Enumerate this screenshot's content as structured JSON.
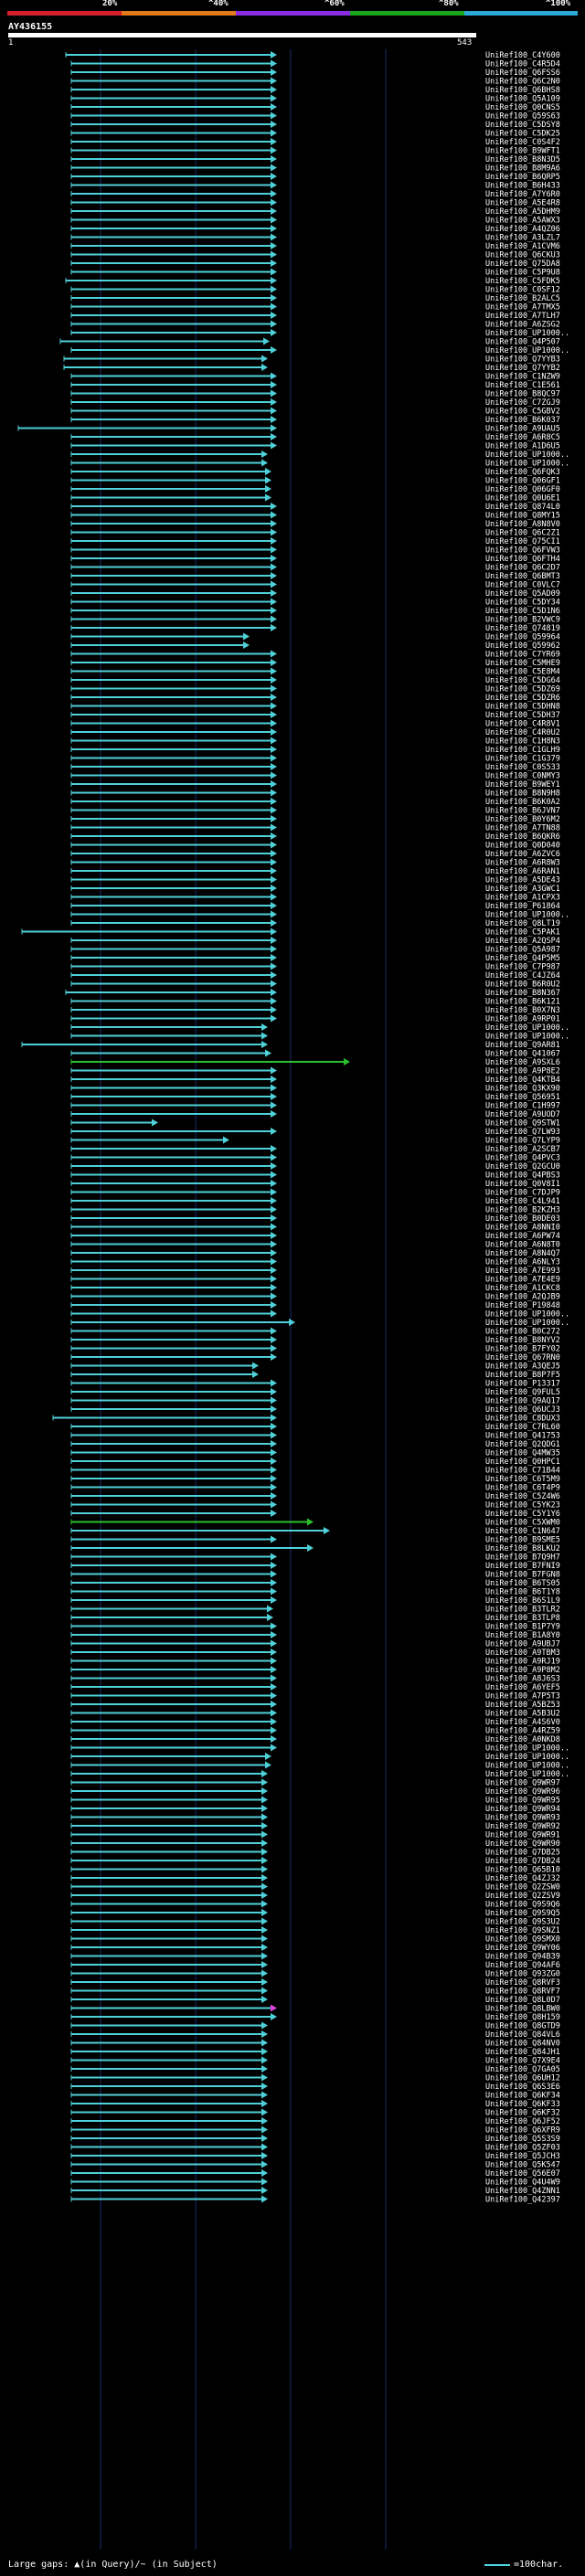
{
  "scale": {
    "labels": [
      "20%",
      "^40%",
      "^60%",
      "^80%",
      "^100%"
    ],
    "colors": [
      "#d61f2c",
      "#e07a1a",
      "#8a2be2",
      "#1aa51a",
      "#2aa8d6"
    ]
  },
  "query": {
    "id": "AY436155",
    "start": "1",
    "end": "543"
  },
  "hits": [
    {
      "id": "UniRef100_C4Y600",
      "s": 72,
      "e": 300
    },
    {
      "id": "UniRef100_C4R5D4",
      "s": 78,
      "e": 300
    },
    {
      "id": "UniRef100_Q6FSS6",
      "s": 78,
      "e": 300
    },
    {
      "id": "UniRef100_Q6C2N0",
      "s": 78,
      "e": 300
    },
    {
      "id": "UniRef100_Q6BHS8",
      "s": 78,
      "e": 300
    },
    {
      "id": "UniRef100_Q5A109",
      "s": 78,
      "e": 300
    },
    {
      "id": "UniRef100_Q0CNS5",
      "s": 78,
      "e": 300
    },
    {
      "id": "UniRef100_Q59S63",
      "s": 78,
      "e": 300
    },
    {
      "id": "UniRef100_C5DSY8",
      "s": 78,
      "e": 300
    },
    {
      "id": "UniRef100_C5DK25",
      "s": 78,
      "e": 300
    },
    {
      "id": "UniRef100_C0S4F2",
      "s": 78,
      "e": 300
    },
    {
      "id": "UniRef100_B9WFT1",
      "s": 78,
      "e": 300
    },
    {
      "id": "UniRef100_B8N3D5",
      "s": 78,
      "e": 300
    },
    {
      "id": "UniRef100_B8M9A6",
      "s": 78,
      "e": 300
    },
    {
      "id": "UniRef100_B6QRP5",
      "s": 78,
      "e": 300
    },
    {
      "id": "UniRef100_B6H433",
      "s": 78,
      "e": 300
    },
    {
      "id": "UniRef100_A7Y6R0",
      "s": 78,
      "e": 300
    },
    {
      "id": "UniRef100_A5E4R8",
      "s": 78,
      "e": 300
    },
    {
      "id": "UniRef100_A5DHM9",
      "s": 78,
      "e": 300
    },
    {
      "id": "UniRef100_A5AWX3",
      "s": 78,
      "e": 300
    },
    {
      "id": "UniRef100_A4QZ06",
      "s": 78,
      "e": 300
    },
    {
      "id": "UniRef100_A3LZL7",
      "s": 78,
      "e": 300
    },
    {
      "id": "UniRef100_A1CVM6",
      "s": 78,
      "e": 300
    },
    {
      "id": "UniRef100_Q6CKU3",
      "s": 78,
      "e": 300
    },
    {
      "id": "UniRef100_Q75DA8",
      "s": 78,
      "e": 300
    },
    {
      "id": "UniRef100_C5P9U8",
      "s": 78,
      "e": 300
    },
    {
      "id": "UniRef100_C5FDK5",
      "s": 72,
      "e": 300
    },
    {
      "id": "UniRef100_C0SF12",
      "s": 78,
      "e": 300
    },
    {
      "id": "UniRef100_B2ALC5",
      "s": 78,
      "e": 300
    },
    {
      "id": "UniRef100_A7TMX5",
      "s": 78,
      "e": 300
    },
    {
      "id": "UniRef100_A7TLH7",
      "s": 78,
      "e": 300
    },
    {
      "id": "UniRef100_A6ZSG2",
      "s": 78,
      "e": 300
    },
    {
      "id": "UniRef100_UP1000..",
      "s": 78,
      "e": 300
    },
    {
      "id": "UniRef100_Q4P507",
      "s": 66,
      "e": 292
    },
    {
      "id": "UniRef100_UP1000..",
      "s": 78,
      "e": 300
    },
    {
      "id": "UniRef100_Q7YYB3",
      "s": 70,
      "e": 290
    },
    {
      "id": "UniRef100_Q7YYB2",
      "s": 70,
      "e": 290
    },
    {
      "id": "UniRef100_C1NZW9",
      "s": 78,
      "e": 300
    },
    {
      "id": "UniRef100_C1E561",
      "s": 78,
      "e": 300
    },
    {
      "id": "UniRef100_B8QC97",
      "s": 78,
      "e": 300
    },
    {
      "id": "UniRef100_C7ZGJ9",
      "s": 78,
      "e": 300
    },
    {
      "id": "UniRef100_C5GBV2",
      "s": 78,
      "e": 300
    },
    {
      "id": "UniRef100_B6K037",
      "s": 78,
      "e": 300
    },
    {
      "id": "UniRef100_A9UAU5",
      "s": 20,
      "e": 300
    },
    {
      "id": "UniRef100_A6R8C5",
      "s": 78,
      "e": 300
    },
    {
      "id": "UniRef100_A1D6U5",
      "s": 78,
      "e": 300
    },
    {
      "id": "UniRef100_UP1000..",
      "s": 78,
      "e": 290
    },
    {
      "id": "UniRef100_UP1000..",
      "s": 78,
      "e": 290
    },
    {
      "id": "UniRef100_Q6FQK3",
      "s": 78,
      "e": 294
    },
    {
      "id": "UniRef100_Q06GF1",
      "s": 78,
      "e": 294
    },
    {
      "id": "UniRef100_Q06GF0",
      "s": 78,
      "e": 294
    },
    {
      "id": "UniRef100_Q0U6E1",
      "s": 78,
      "e": 294
    },
    {
      "id": "UniRef100_Q874L0",
      "s": 78,
      "e": 300
    },
    {
      "id": "UniRef100_Q8MY15",
      "s": 78,
      "e": 300
    },
    {
      "id": "UniRef100_A8N8V0",
      "s": 78,
      "e": 300
    },
    {
      "id": "UniRef100_Q6C2Z1",
      "s": 78,
      "e": 300
    },
    {
      "id": "UniRef100_Q75CI1",
      "s": 78,
      "e": 300
    },
    {
      "id": "UniRef100_Q6FVW3",
      "s": 78,
      "e": 300
    },
    {
      "id": "UniRef100_Q6FTH4",
      "s": 78,
      "e": 300
    },
    {
      "id": "UniRef100_Q6C2D7",
      "s": 78,
      "e": 300
    },
    {
      "id": "UniRef100_Q6BMT3",
      "s": 78,
      "e": 300
    },
    {
      "id": "UniRef100_C0VLC7",
      "s": 78,
      "e": 300
    },
    {
      "id": "UniRef100_Q5AD09",
      "s": 78,
      "e": 300
    },
    {
      "id": "UniRef100_C5DY34",
      "s": 78,
      "e": 300
    },
    {
      "id": "UniRef100_C5D1N6",
      "s": 78,
      "e": 300
    },
    {
      "id": "UniRef100_B2VWC9",
      "s": 78,
      "e": 300
    },
    {
      "id": "UniRef100_Q74819",
      "s": 78,
      "e": 300
    },
    {
      "id": "UniRef100_Q59964",
      "s": 78,
      "e": 270
    },
    {
      "id": "UniRef100_Q59962",
      "s": 78,
      "e": 270
    },
    {
      "id": "UniRef100_C7YR69",
      "s": 78,
      "e": 300
    },
    {
      "id": "UniRef100_C5MHE9",
      "s": 78,
      "e": 300
    },
    {
      "id": "UniRef100_C5E8M4",
      "s": 78,
      "e": 300
    },
    {
      "id": "UniRef100_C5DG64",
      "s": 78,
      "e": 300
    },
    {
      "id": "UniRef100_C5DZ69",
      "s": 78,
      "e": 300
    },
    {
      "id": "UniRef100_C5DZR6",
      "s": 78,
      "e": 300
    },
    {
      "id": "UniRef100_C5DHN8",
      "s": 78,
      "e": 300
    },
    {
      "id": "UniRef100_C5DH37",
      "s": 78,
      "e": 300
    },
    {
      "id": "UniRef100_C4R8V1",
      "s": 78,
      "e": 300
    },
    {
      "id": "UniRef100_C4R0U2",
      "s": 78,
      "e": 300
    },
    {
      "id": "UniRef100_C1H8N3",
      "s": 78,
      "e": 300
    },
    {
      "id": "UniRef100_C1GLH9",
      "s": 78,
      "e": 300
    },
    {
      "id": "UniRef100_C1G379",
      "s": 78,
      "e": 300
    },
    {
      "id": "UniRef100_C0S533",
      "s": 78,
      "e": 300
    },
    {
      "id": "UniRef100_C0NMY3",
      "s": 78,
      "e": 300
    },
    {
      "id": "UniRef100_B9WEY1",
      "s": 78,
      "e": 300
    },
    {
      "id": "UniRef100_B8N9H8",
      "s": 78,
      "e": 300
    },
    {
      "id": "UniRef100_B6K0A2",
      "s": 78,
      "e": 300
    },
    {
      "id": "UniRef100_B6JVN7",
      "s": 78,
      "e": 300
    },
    {
      "id": "UniRef100_B0Y6M2",
      "s": 78,
      "e": 300
    },
    {
      "id": "UniRef100_A7TN88",
      "s": 78,
      "e": 300
    },
    {
      "id": "UniRef100_B6QKR6",
      "s": 78,
      "e": 300
    },
    {
      "id": "UniRef100_Q0D040",
      "s": 78,
      "e": 300
    },
    {
      "id": "UniRef100_A6ZVC6",
      "s": 78,
      "e": 300
    },
    {
      "id": "UniRef100_A6R8W3",
      "s": 78,
      "e": 300
    },
    {
      "id": "UniRef100_A6RAN1",
      "s": 78,
      "e": 300
    },
    {
      "id": "UniRef100_A5DE43",
      "s": 78,
      "e": 300
    },
    {
      "id": "UniRef100_A3GWC1",
      "s": 78,
      "e": 300
    },
    {
      "id": "UniRef100_A1CPX3",
      "s": 78,
      "e": 300
    },
    {
      "id": "UniRef100_P61864",
      "s": 78,
      "e": 300
    },
    {
      "id": "UniRef100_UP1000..",
      "s": 78,
      "e": 300
    },
    {
      "id": "UniRef100_Q8LT19",
      "s": 78,
      "e": 300
    },
    {
      "id": "UniRef100_C5PAK1",
      "s": 24,
      "e": 300
    },
    {
      "id": "UniRef100_A2QSP4",
      "s": 78,
      "e": 300
    },
    {
      "id": "UniRef100_Q5A987",
      "s": 78,
      "e": 300
    },
    {
      "id": "UniRef100_Q4P5M5",
      "s": 78,
      "e": 300
    },
    {
      "id": "UniRef100_C7P987",
      "s": 78,
      "e": 300
    },
    {
      "id": "UniRef100_C4JZ64",
      "s": 78,
      "e": 300
    },
    {
      "id": "UniRef100_B6R0U2",
      "s": 78,
      "e": 300
    },
    {
      "id": "UniRef100_B8N367",
      "s": 72,
      "e": 300
    },
    {
      "id": "UniRef100_B6K121",
      "s": 78,
      "e": 300
    },
    {
      "id": "UniRef100_B0X7N3",
      "s": 78,
      "e": 300
    },
    {
      "id": "UniRef100_A9RP01",
      "s": 78,
      "e": 300
    },
    {
      "id": "UniRef100_UP1000..",
      "s": 78,
      "e": 290
    },
    {
      "id": "UniRef100_UP1000..",
      "s": 78,
      "e": 290
    },
    {
      "id": "UniRef100_Q9AR81",
      "s": 24,
      "e": 290
    },
    {
      "id": "UniRef100_Q41067",
      "s": 78,
      "e": 294
    },
    {
      "id": "UniRef100_A9SXL6",
      "s": 78,
      "e": 380,
      "g": 1
    },
    {
      "id": "UniRef100_A9P8E2",
      "s": 78,
      "e": 300
    },
    {
      "id": "UniRef100_Q4KTB4",
      "s": 78,
      "e": 300
    },
    {
      "id": "UniRef100_Q3KX90",
      "s": 78,
      "e": 300
    },
    {
      "id": "UniRef100_Q56951",
      "s": 78,
      "e": 300
    },
    {
      "id": "UniRef100_C1H997",
      "s": 78,
      "e": 300
    },
    {
      "id": "UniRef100_A9UOD7",
      "s": 78,
      "e": 300
    },
    {
      "id": "UniRef100_Q9STW1",
      "s": 78,
      "e": 170
    },
    {
      "id": "UniRef100_Q7LW93",
      "s": 78,
      "e": 300
    },
    {
      "id": "UniRef100_Q7LYP9",
      "s": 78,
      "e": 248
    },
    {
      "id": "UniRef100_A2SCB7",
      "s": 78,
      "e": 300
    },
    {
      "id": "UniRef100_Q4PVC3",
      "s": 78,
      "e": 300
    },
    {
      "id": "UniRef100_Q2GCU0",
      "s": 78,
      "e": 300
    },
    {
      "id": "UniRef100_Q4PBS3",
      "s": 78,
      "e": 300
    },
    {
      "id": "UniRef100_Q0V8I1",
      "s": 78,
      "e": 300
    },
    {
      "id": "UniRef100_C7DJP9",
      "s": 78,
      "e": 300
    },
    {
      "id": "UniRef100_C4L941",
      "s": 78,
      "e": 300
    },
    {
      "id": "UniRef100_B2KZH3",
      "s": 78,
      "e": 300
    },
    {
      "id": "UniRef100_B0DE03",
      "s": 78,
      "e": 300
    },
    {
      "id": "UniRef100_A8NNI0",
      "s": 78,
      "e": 300
    },
    {
      "id": "UniRef100_A6PW74",
      "s": 78,
      "e": 300
    },
    {
      "id": "UniRef100_A6N8T0",
      "s": 78,
      "e": 300
    },
    {
      "id": "UniRef100_A8N4Q7",
      "s": 78,
      "e": 300
    },
    {
      "id": "UniRef100_A6NLY3",
      "s": 78,
      "e": 300
    },
    {
      "id": "UniRef100_A7E993",
      "s": 78,
      "e": 300
    },
    {
      "id": "UniRef100_A7E4E9",
      "s": 78,
      "e": 300
    },
    {
      "id": "UniRef100_A1CKC8",
      "s": 78,
      "e": 300
    },
    {
      "id": "UniRef100_A2QJB9",
      "s": 78,
      "e": 300
    },
    {
      "id": "UniRef100_P19848",
      "s": 78,
      "e": 300
    },
    {
      "id": "UniRef100_UP1000..",
      "s": 78,
      "e": 300
    },
    {
      "id": "UniRef100_UP1000..",
      "s": 78,
      "e": 320
    },
    {
      "id": "UniRef100_B0C272",
      "s": 78,
      "e": 300
    },
    {
      "id": "UniRef100_B8NYV2",
      "s": 78,
      "e": 300
    },
    {
      "id": "UniRef100_B7FY02",
      "s": 78,
      "e": 300
    },
    {
      "id": "UniRef100_Q67RN0",
      "s": 78,
      "e": 300
    },
    {
      "id": "UniRef100_A3QEJ5",
      "s": 78,
      "e": 280
    },
    {
      "id": "UniRef100_B8P7F5",
      "s": 78,
      "e": 280
    },
    {
      "id": "UniRef100_P13317",
      "s": 78,
      "e": 300
    },
    {
      "id": "UniRef100_Q9FUL5",
      "s": 78,
      "e": 300
    },
    {
      "id": "UniRef100_Q9AQ17",
      "s": 78,
      "e": 300
    },
    {
      "id": "UniRef100_Q6UCJ3",
      "s": 78,
      "e": 300
    },
    {
      "id": "UniRef100_C8DUX3",
      "s": 58,
      "e": 300
    },
    {
      "id": "UniRef100_C7RL60",
      "s": 78,
      "e": 300
    },
    {
      "id": "UniRef100_Q41753",
      "s": 78,
      "e": 300
    },
    {
      "id": "UniRef100_Q2QDG1",
      "s": 78,
      "e": 300
    },
    {
      "id": "UniRef100_Q4MW35",
      "s": 78,
      "e": 300
    },
    {
      "id": "UniRef100_Q0HPC1",
      "s": 78,
      "e": 300
    },
    {
      "id": "UniRef100_C71B44",
      "s": 78,
      "e": 300
    },
    {
      "id": "UniRef100_C6T5M9",
      "s": 78,
      "e": 300
    },
    {
      "id": "UniRef100_C6T4P9",
      "s": 78,
      "e": 300
    },
    {
      "id": "UniRef100_C5Z4W6",
      "s": 78,
      "e": 300
    },
    {
      "id": "UniRef100_C5YK23",
      "s": 78,
      "e": 300
    },
    {
      "id": "UniRef100_C5Y1Y6",
      "s": 78,
      "e": 300
    },
    {
      "id": "UniRef100_C5XWM0",
      "s": 78,
      "e": 340,
      "g": 1
    },
    {
      "id": "UniRef100_C1N647",
      "s": 78,
      "e": 358
    },
    {
      "id": "UniRef100_B9SME5",
      "s": 78,
      "e": 300
    },
    {
      "id": "UniRef100_B8LKU2",
      "s": 78,
      "e": 340
    },
    {
      "id": "UniRef100_B7Q9H7",
      "s": 78,
      "e": 300
    },
    {
      "id": "UniRef100_B7FNI9",
      "s": 78,
      "e": 300
    },
    {
      "id": "UniRef100_B7FGN8",
      "s": 78,
      "e": 300
    },
    {
      "id": "UniRef100_B6TS05",
      "s": 78,
      "e": 300
    },
    {
      "id": "UniRef100_B6T1Y8",
      "s": 78,
      "e": 300
    },
    {
      "id": "UniRef100_B6S1L9",
      "s": 78,
      "e": 300
    },
    {
      "id": "UniRef100_B3TLR2",
      "s": 78,
      "e": 296
    },
    {
      "id": "UniRef100_B3TLP8",
      "s": 78,
      "e": 296
    },
    {
      "id": "UniRef100_B1P7Y9",
      "s": 78,
      "e": 300
    },
    {
      "id": "UniRef100_B1A8Y0",
      "s": 78,
      "e": 300
    },
    {
      "id": "UniRef100_A9UBJ7",
      "s": 78,
      "e": 300
    },
    {
      "id": "UniRef100_A9TBM3",
      "s": 78,
      "e": 300
    },
    {
      "id": "UniRef100_A9RJ19",
      "s": 78,
      "e": 300
    },
    {
      "id": "UniRef100_A9P8M2",
      "s": 78,
      "e": 300
    },
    {
      "id": "UniRef100_A8J6S3",
      "s": 78,
      "e": 300
    },
    {
      "id": "UniRef100_A6YEF5",
      "s": 78,
      "e": 300
    },
    {
      "id": "UniRef100_A7P5T3",
      "s": 78,
      "e": 300
    },
    {
      "id": "UniRef100_A5BZ53",
      "s": 78,
      "e": 300
    },
    {
      "id": "UniRef100_A5B3U2",
      "s": 78,
      "e": 300
    },
    {
      "id": "UniRef100_A4S6V0",
      "s": 78,
      "e": 300
    },
    {
      "id": "UniRef100_A4RZ59",
      "s": 78,
      "e": 300
    },
    {
      "id": "UniRef100_A0NKD8",
      "s": 78,
      "e": 300
    },
    {
      "id": "UniRef100_UP1000..",
      "s": 78,
      "e": 300
    },
    {
      "id": "UniRef100_UP1000..",
      "s": 78,
      "e": 294
    },
    {
      "id": "UniRef100_UP1000..",
      "s": 78,
      "e": 294
    },
    {
      "id": "UniRef100_UP1000..",
      "s": 78,
      "e": 290
    },
    {
      "id": "UniRef100_Q9WR97",
      "s": 78,
      "e": 290
    },
    {
      "id": "UniRef100_Q9WR96",
      "s": 78,
      "e": 290
    },
    {
      "id": "UniRef100_Q9WR95",
      "s": 78,
      "e": 290
    },
    {
      "id": "UniRef100_Q9WR94",
      "s": 78,
      "e": 290
    },
    {
      "id": "UniRef100_Q9WR93",
      "s": 78,
      "e": 290
    },
    {
      "id": "UniRef100_Q9WR92",
      "s": 78,
      "e": 290
    },
    {
      "id": "UniRef100_Q9WR91",
      "s": 78,
      "e": 290
    },
    {
      "id": "UniRef100_Q9WR90",
      "s": 78,
      "e": 290
    },
    {
      "id": "UniRef100_Q7DB25",
      "s": 78,
      "e": 290
    },
    {
      "id": "UniRef100_Q7DB24",
      "s": 78,
      "e": 290
    },
    {
      "id": "UniRef100_Q65B10",
      "s": 78,
      "e": 290
    },
    {
      "id": "UniRef100_Q4ZJ32",
      "s": 78,
      "e": 290
    },
    {
      "id": "UniRef100_Q2ZSW0",
      "s": 78,
      "e": 290
    },
    {
      "id": "UniRef100_Q2ZSV9",
      "s": 78,
      "e": 290
    },
    {
      "id": "UniRef100_Q9S9Q6",
      "s": 78,
      "e": 290
    },
    {
      "id": "UniRef100_Q9S9Q5",
      "s": 78,
      "e": 290
    },
    {
      "id": "UniRef100_Q9S3U2",
      "s": 78,
      "e": 290
    },
    {
      "id": "UniRef100_Q9SNZ1",
      "s": 78,
      "e": 290
    },
    {
      "id": "UniRef100_Q9SMX0",
      "s": 78,
      "e": 290
    },
    {
      "id": "UniRef100_Q9WY06",
      "s": 78,
      "e": 290
    },
    {
      "id": "UniRef100_Q94B39",
      "s": 78,
      "e": 290
    },
    {
      "id": "UniRef100_Q94AF6",
      "s": 78,
      "e": 290
    },
    {
      "id": "UniRef100_Q93ZG0",
      "s": 78,
      "e": 290
    },
    {
      "id": "UniRef100_Q8RVF3",
      "s": 78,
      "e": 290
    },
    {
      "id": "UniRef100_Q8RVF7",
      "s": 78,
      "e": 290
    },
    {
      "id": "UniRef100_Q8L0D7",
      "s": 78,
      "e": 290
    },
    {
      "id": "UniRef100_Q8LBW0",
      "s": 78,
      "e": 300,
      "p": 1
    },
    {
      "id": "UniRef100_Q8H159",
      "s": 78,
      "e": 300
    },
    {
      "id": "UniRef100_Q8GTD9",
      "s": 78,
      "e": 290
    },
    {
      "id": "UniRef100_Q84VL6",
      "s": 78,
      "e": 290
    },
    {
      "id": "UniRef100_Q84NV0",
      "s": 78,
      "e": 290
    },
    {
      "id": "UniRef100_Q84JH1",
      "s": 78,
      "e": 290
    },
    {
      "id": "UniRef100_Q7X9E4",
      "s": 78,
      "e": 290
    },
    {
      "id": "UniRef100_Q7GA05",
      "s": 78,
      "e": 290
    },
    {
      "id": "UniRef100_Q6UH12",
      "s": 78,
      "e": 290
    },
    {
      "id": "UniRef100_Q6S3E6",
      "s": 78,
      "e": 290
    },
    {
      "id": "UniRef100_Q6KF34",
      "s": 78,
      "e": 290
    },
    {
      "id": "UniRef100_Q6KF33",
      "s": 78,
      "e": 290
    },
    {
      "id": "UniRef100_Q6KF32",
      "s": 78,
      "e": 290
    },
    {
      "id": "UniRef100_Q6JF52",
      "s": 78,
      "e": 290
    },
    {
      "id": "UniRef100_Q6XFR9",
      "s": 78,
      "e": 290
    },
    {
      "id": "UniRef100_Q5S3S9",
      "s": 78,
      "e": 290
    },
    {
      "id": "UniRef100_Q5ZF03",
      "s": 78,
      "e": 290
    },
    {
      "id": "UniRef100_Q5JCH3",
      "s": 78,
      "e": 290
    },
    {
      "id": "UniRef100_Q5K547",
      "s": 78,
      "e": 290
    },
    {
      "id": "UniRef100_Q56E07",
      "s": 78,
      "e": 290
    },
    {
      "id": "UniRef100_Q4U4W9",
      "s": 78,
      "e": 290
    },
    {
      "id": "UniRef100_Q4ZNN1",
      "s": 78,
      "e": 290
    },
    {
      "id": "UniRef100_Q42397",
      "s": 78,
      "e": 290
    }
  ],
  "legend": {
    "large_gaps": "Large gaps:",
    "marker": "▲",
    "query_text": "(in Query)/~ (in Subject)",
    "scale_text": "=100char."
  },
  "colors": {
    "hit": "#4fd1d9",
    "gap_hit": "#2bbf2b",
    "highlight": "#e040e0"
  }
}
